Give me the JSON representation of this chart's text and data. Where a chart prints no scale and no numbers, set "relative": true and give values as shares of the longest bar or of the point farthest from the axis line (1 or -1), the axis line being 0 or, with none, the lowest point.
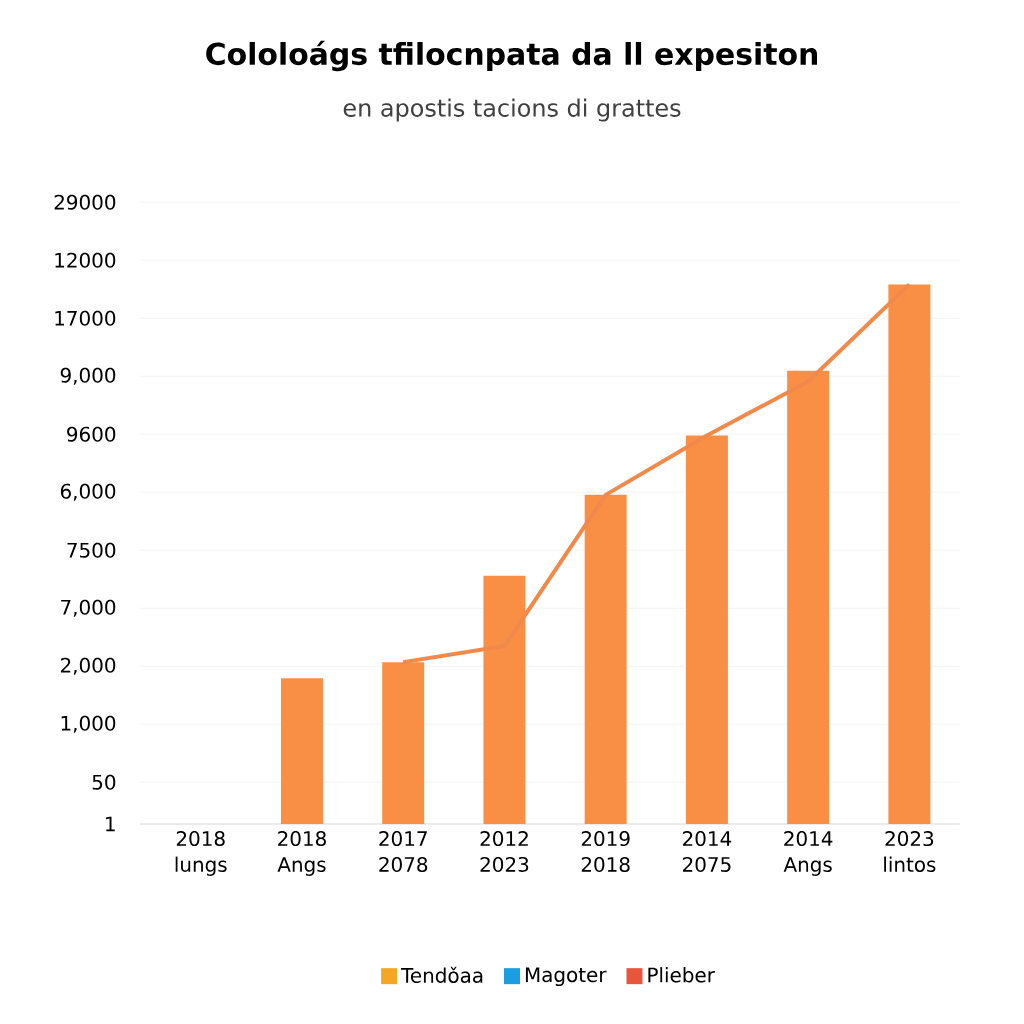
{
  "chart_data": {
    "type": "bar",
    "title": "Cololoágs tfilocnpata da ll expesiton",
    "subtitle": "en apostis tacions di grattes",
    "categories": [
      "2018 lungs",
      "2018 Angs",
      "2017 2078",
      "2012 2023",
      "2019 2018",
      "2014 2075",
      "2014 Angs",
      "2023 lintos"
    ],
    "relative": true,
    "annotations": [
      "1",
      "50",
      "1,000",
      "2,000",
      "7,000",
      "7500",
      "6,000",
      "9600",
      "9,000",
      "17000",
      "12000",
      "29000"
    ],
    "grid": "y",
    "legend": "bottom",
    "series": [
      {
        "name": "Tendǒaa",
        "color": "#f5a623",
        "values": [
          null,
          null,
          null,
          null,
          null,
          null,
          null,
          null
        ]
      },
      {
        "name": "Magoter",
        "color": "#1a9ee0",
        "values": [
          null,
          null,
          null,
          null,
          null,
          null,
          null,
          null
        ]
      },
      {
        "name": "Plieber",
        "color": "#e8553d",
        "values": [
          null,
          null,
          null,
          null,
          null,
          null,
          null,
          null
        ]
      },
      {
        "color": "#f98f45",
        "values": [
          null,
          0.27,
          0.3,
          0.46,
          0.61,
          0.72,
          0.84,
          1
        ]
      },
      {
        "type": "line",
        "color": "#f0894a",
        "values": [
          null,
          null,
          0.3,
          0.33,
          0.61,
          0.72,
          0.82,
          1
        ]
      }
    ]
  }
}
